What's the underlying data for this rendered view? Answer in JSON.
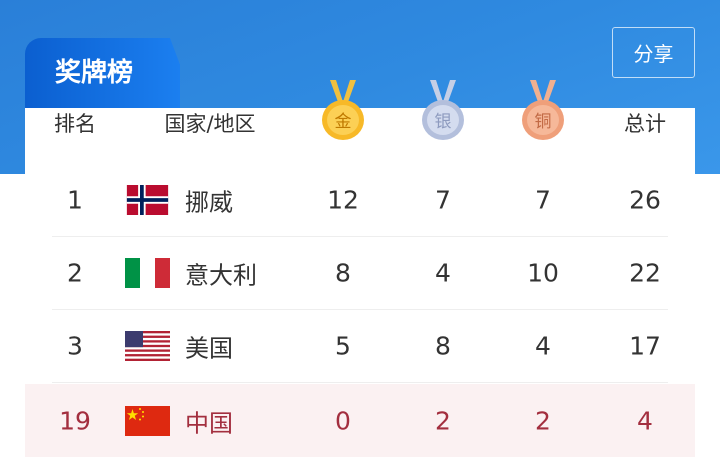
{
  "header": {
    "title": "奖牌榜",
    "share_label": "分享"
  },
  "columns": {
    "rank": "排名",
    "country": "国家/地区",
    "gold": "金",
    "silver": "银",
    "bronze": "铜",
    "total": "总计"
  },
  "colors": {
    "band": "#2f8ae0",
    "highlight_bg": "#fbf1f2",
    "highlight_text": "#a32f3f"
  },
  "rows": [
    {
      "rank": "1",
      "flag": "norway-flag",
      "country": "挪威",
      "gold": "12",
      "silver": "7",
      "bronze": "7",
      "total": "26"
    },
    {
      "rank": "2",
      "flag": "italy-flag",
      "country": "意大利",
      "gold": "8",
      "silver": "4",
      "bronze": "10",
      "total": "22"
    },
    {
      "rank": "3",
      "flag": "usa-flag",
      "country": "美国",
      "gold": "5",
      "silver": "8",
      "bronze": "4",
      "total": "17"
    },
    {
      "rank": "19",
      "flag": "china-flag",
      "country": "中国",
      "gold": "0",
      "silver": "2",
      "bronze": "2",
      "total": "4"
    }
  ]
}
